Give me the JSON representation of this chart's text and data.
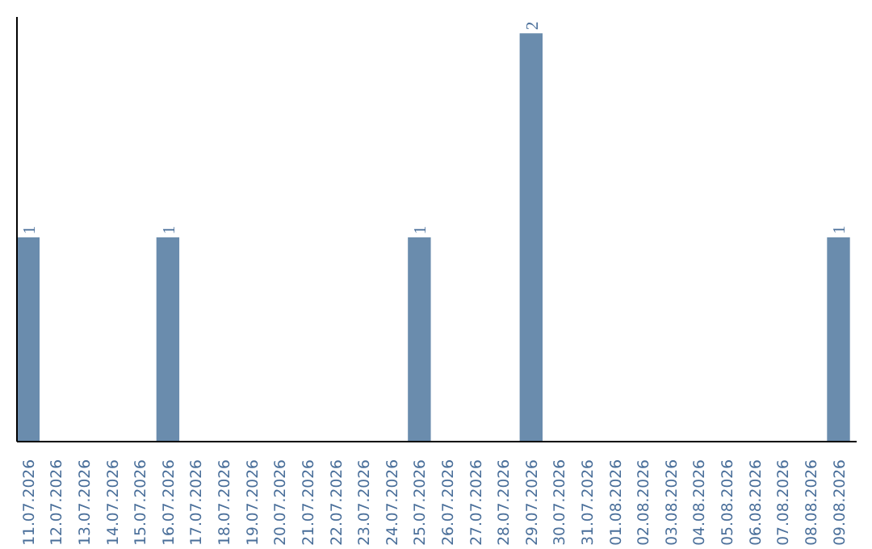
{
  "chart_data": {
    "type": "bar",
    "categories": [
      "11.07.2026",
      "12.07.2026",
      "13.07.2026",
      "14.07.2026",
      "15.07.2026",
      "16.07.2026",
      "17.07.2026",
      "18.07.2026",
      "19.07.2026",
      "20.07.2026",
      "21.07.2026",
      "22.07.2026",
      "23.07.2026",
      "24.07.2026",
      "25.07.2026",
      "26.07.2026",
      "27.07.2026",
      "28.07.2026",
      "29.07.2026",
      "30.07.2026",
      "31.07.2026",
      "01.08.2026",
      "02.08.2026",
      "03.08.2026",
      "04.08.2026",
      "05.08.2026",
      "06.08.2026",
      "07.08.2026",
      "08.08.2026",
      "09.08.2026"
    ],
    "values": [
      1,
      0,
      0,
      0,
      0,
      1,
      0,
      0,
      0,
      0,
      0,
      0,
      0,
      0,
      1,
      0,
      0,
      0,
      2,
      0,
      0,
      0,
      0,
      0,
      0,
      0,
      0,
      0,
      0,
      1
    ],
    "value_labels": [
      "1",
      null,
      null,
      null,
      null,
      "1",
      null,
      null,
      null,
      null,
      null,
      null,
      null,
      null,
      "1",
      null,
      null,
      null,
      "2",
      null,
      null,
      null,
      null,
      null,
      null,
      null,
      null,
      null,
      null,
      "1"
    ],
    "color": "#6a8cad",
    "grid": false
  }
}
